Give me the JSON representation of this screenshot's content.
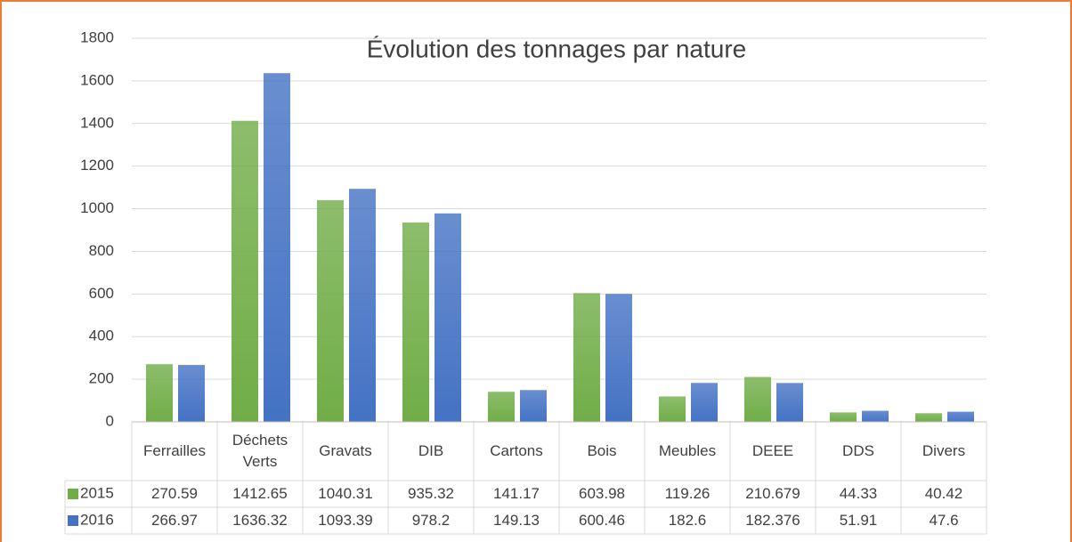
{
  "chart_data": {
    "type": "bar",
    "title": "Évolution des tonnages par nature",
    "categories": [
      "Ferrailles",
      "Déchets Verts",
      "Gravats",
      "DIB",
      "Cartons",
      "Bois",
      "Meubles",
      "DEEE",
      "DDS",
      "Divers"
    ],
    "series": [
      {
        "name": "2015",
        "color": "#70ad47",
        "values": [
          270.59,
          1412.65,
          1040.31,
          935.32,
          141.17,
          603.98,
          119.26,
          210.679,
          44.33,
          40.42
        ]
      },
      {
        "name": "2016",
        "color": "#4472c4",
        "values": [
          266.97,
          1636.32,
          1093.39,
          978.2,
          149.13,
          600.46,
          182.6,
          182.376,
          51.91,
          47.6
        ]
      }
    ],
    "ylim": [
      0,
      1800
    ],
    "yticks": [
      0,
      200,
      400,
      600,
      800,
      1000,
      1200,
      1400,
      1600,
      1800
    ],
    "grid": true
  }
}
